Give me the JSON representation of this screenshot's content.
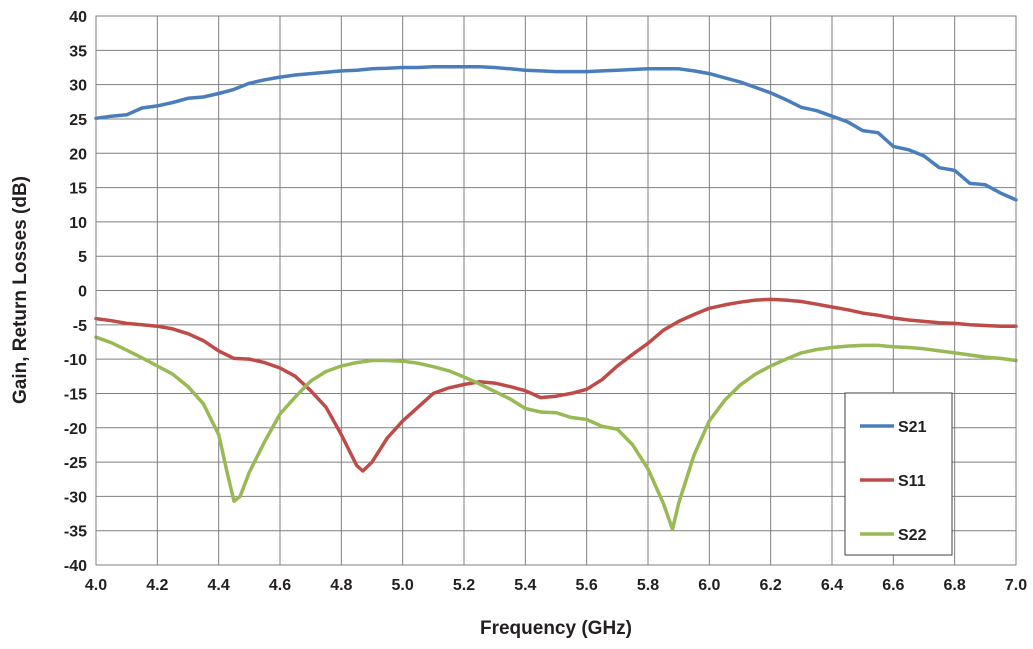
{
  "chart_data": {
    "type": "line",
    "title": "",
    "xlabel": "Frequency (GHz)",
    "ylabel": "Gain, Return Losses (dB)",
    "xlim": [
      4.0,
      7.0
    ],
    "ylim": [
      -40,
      40
    ],
    "x_ticks": [
      "4.0",
      "4.2",
      "4.4",
      "4.6",
      "4.8",
      "5.0",
      "5.2",
      "5.4",
      "5.6",
      "5.8",
      "6.0",
      "6.2",
      "6.4",
      "6.6",
      "6.8",
      "7.0"
    ],
    "y_ticks": [
      "40",
      "35",
      "30",
      "25",
      "20",
      "15",
      "10",
      "5",
      "0",
      "-5",
      "-10",
      "-15",
      "-20",
      "-25",
      "-30",
      "-35",
      "-40"
    ],
    "grid": true,
    "legend_position": "bottom-right",
    "series": [
      {
        "name": "S21",
        "color": "#4a7ebb",
        "points": [
          [
            4.0,
            25.1
          ],
          [
            4.05,
            25.4
          ],
          [
            4.1,
            25.6
          ],
          [
            4.15,
            26.6
          ],
          [
            4.2,
            26.9
          ],
          [
            4.25,
            27.4
          ],
          [
            4.3,
            28.0
          ],
          [
            4.35,
            28.2
          ],
          [
            4.4,
            28.7
          ],
          [
            4.45,
            29.3
          ],
          [
            4.5,
            30.2
          ],
          [
            4.55,
            30.7
          ],
          [
            4.6,
            31.1
          ],
          [
            4.65,
            31.4
          ],
          [
            4.7,
            31.6
          ],
          [
            4.75,
            31.8
          ],
          [
            4.8,
            32.0
          ],
          [
            4.85,
            32.1
          ],
          [
            4.9,
            32.3
          ],
          [
            4.95,
            32.4
          ],
          [
            5.0,
            32.5
          ],
          [
            5.05,
            32.5
          ],
          [
            5.1,
            32.6
          ],
          [
            5.15,
            32.6
          ],
          [
            5.2,
            32.6
          ],
          [
            5.25,
            32.6
          ],
          [
            5.3,
            32.5
          ],
          [
            5.35,
            32.3
          ],
          [
            5.4,
            32.1
          ],
          [
            5.45,
            32.0
          ],
          [
            5.5,
            31.9
          ],
          [
            5.55,
            31.9
          ],
          [
            5.6,
            31.9
          ],
          [
            5.65,
            32.0
          ],
          [
            5.7,
            32.1
          ],
          [
            5.75,
            32.2
          ],
          [
            5.8,
            32.3
          ],
          [
            5.85,
            32.3
          ],
          [
            5.9,
            32.3
          ],
          [
            5.95,
            32.0
          ],
          [
            6.0,
            31.6
          ],
          [
            6.05,
            31.0
          ],
          [
            6.1,
            30.4
          ],
          [
            6.15,
            29.6
          ],
          [
            6.2,
            28.8
          ],
          [
            6.25,
            27.8
          ],
          [
            6.3,
            26.7
          ],
          [
            6.35,
            26.2
          ],
          [
            6.4,
            25.4
          ],
          [
            6.45,
            24.6
          ],
          [
            6.5,
            23.3
          ],
          [
            6.55,
            23.0
          ],
          [
            6.6,
            21.0
          ],
          [
            6.65,
            20.5
          ],
          [
            6.7,
            19.6
          ],
          [
            6.75,
            17.9
          ],
          [
            6.8,
            17.5
          ],
          [
            6.85,
            15.6
          ],
          [
            6.9,
            15.4
          ],
          [
            6.95,
            14.2
          ],
          [
            7.0,
            13.2
          ]
        ]
      },
      {
        "name": "S11",
        "color": "#be4b48",
        "points": [
          [
            4.0,
            -4.1
          ],
          [
            4.05,
            -4.4
          ],
          [
            4.1,
            -4.8
          ],
          [
            4.15,
            -5.0
          ],
          [
            4.2,
            -5.2
          ],
          [
            4.25,
            -5.6
          ],
          [
            4.3,
            -6.3
          ],
          [
            4.35,
            -7.3
          ],
          [
            4.4,
            -8.8
          ],
          [
            4.45,
            -9.9
          ],
          [
            4.5,
            -10.0
          ],
          [
            4.55,
            -10.5
          ],
          [
            4.6,
            -11.3
          ],
          [
            4.65,
            -12.5
          ],
          [
            4.7,
            -14.6
          ],
          [
            4.75,
            -17.0
          ],
          [
            4.8,
            -21.0
          ],
          [
            4.85,
            -25.5
          ],
          [
            4.87,
            -26.3
          ],
          [
            4.9,
            -25.0
          ],
          [
            4.95,
            -21.5
          ],
          [
            5.0,
            -19.0
          ],
          [
            5.05,
            -17.0
          ],
          [
            5.1,
            -15.0
          ],
          [
            5.15,
            -14.2
          ],
          [
            5.2,
            -13.7
          ],
          [
            5.25,
            -13.3
          ],
          [
            5.3,
            -13.5
          ],
          [
            5.35,
            -14.0
          ],
          [
            5.4,
            -14.6
          ],
          [
            5.45,
            -15.6
          ],
          [
            5.5,
            -15.4
          ],
          [
            5.55,
            -15.0
          ],
          [
            5.6,
            -14.4
          ],
          [
            5.65,
            -13.0
          ],
          [
            5.7,
            -11.0
          ],
          [
            5.75,
            -9.3
          ],
          [
            5.8,
            -7.7
          ],
          [
            5.85,
            -5.8
          ],
          [
            5.9,
            -4.5
          ],
          [
            5.95,
            -3.5
          ],
          [
            6.0,
            -2.6
          ],
          [
            6.05,
            -2.1
          ],
          [
            6.1,
            -1.7
          ],
          [
            6.15,
            -1.4
          ],
          [
            6.2,
            -1.3
          ],
          [
            6.25,
            -1.4
          ],
          [
            6.3,
            -1.6
          ],
          [
            6.35,
            -2.0
          ],
          [
            6.4,
            -2.4
          ],
          [
            6.45,
            -2.8
          ],
          [
            6.5,
            -3.3
          ],
          [
            6.55,
            -3.6
          ],
          [
            6.6,
            -4.0
          ],
          [
            6.65,
            -4.3
          ],
          [
            6.7,
            -4.5
          ],
          [
            6.75,
            -4.7
          ],
          [
            6.8,
            -4.8
          ],
          [
            6.85,
            -5.0
          ],
          [
            6.9,
            -5.1
          ],
          [
            6.95,
            -5.2
          ],
          [
            7.0,
            -5.2
          ]
        ]
      },
      {
        "name": "S22",
        "color": "#98b954",
        "points": [
          [
            4.0,
            -6.8
          ],
          [
            4.05,
            -7.6
          ],
          [
            4.1,
            -8.7
          ],
          [
            4.15,
            -9.8
          ],
          [
            4.2,
            -11.0
          ],
          [
            4.25,
            -12.2
          ],
          [
            4.3,
            -14.0
          ],
          [
            4.35,
            -16.5
          ],
          [
            4.4,
            -21.0
          ],
          [
            4.43,
            -27.0
          ],
          [
            4.45,
            -30.7
          ],
          [
            4.47,
            -30.0
          ],
          [
            4.5,
            -26.5
          ],
          [
            4.55,
            -22.0
          ],
          [
            4.6,
            -18.0
          ],
          [
            4.65,
            -15.5
          ],
          [
            4.7,
            -13.2
          ],
          [
            4.75,
            -11.8
          ],
          [
            4.8,
            -11.0
          ],
          [
            4.85,
            -10.5
          ],
          [
            4.9,
            -10.2
          ],
          [
            4.95,
            -10.2
          ],
          [
            5.0,
            -10.3
          ],
          [
            5.05,
            -10.6
          ],
          [
            5.1,
            -11.1
          ],
          [
            5.15,
            -11.7
          ],
          [
            5.2,
            -12.6
          ],
          [
            5.25,
            -13.6
          ],
          [
            5.3,
            -14.7
          ],
          [
            5.35,
            -15.8
          ],
          [
            5.4,
            -17.2
          ],
          [
            5.45,
            -17.7
          ],
          [
            5.5,
            -17.8
          ],
          [
            5.55,
            -18.5
          ],
          [
            5.6,
            -18.8
          ],
          [
            5.65,
            -19.8
          ],
          [
            5.7,
            -20.2
          ],
          [
            5.75,
            -22.5
          ],
          [
            5.8,
            -26.0
          ],
          [
            5.85,
            -31.0
          ],
          [
            5.88,
            -34.8
          ],
          [
            5.9,
            -31.0
          ],
          [
            5.95,
            -24.0
          ],
          [
            6.0,
            -19.0
          ],
          [
            6.05,
            -16.0
          ],
          [
            6.1,
            -13.8
          ],
          [
            6.15,
            -12.2
          ],
          [
            6.2,
            -11.0
          ],
          [
            6.25,
            -10.0
          ],
          [
            6.3,
            -9.1
          ],
          [
            6.35,
            -8.6
          ],
          [
            6.4,
            -8.3
          ],
          [
            6.45,
            -8.1
          ],
          [
            6.5,
            -8.0
          ],
          [
            6.55,
            -8.0
          ],
          [
            6.6,
            -8.2
          ],
          [
            6.65,
            -8.3
          ],
          [
            6.7,
            -8.5
          ],
          [
            6.75,
            -8.8
          ],
          [
            6.8,
            -9.1
          ],
          [
            6.85,
            -9.4
          ],
          [
            6.9,
            -9.7
          ],
          [
            6.95,
            -9.9
          ],
          [
            7.0,
            -10.2
          ]
        ]
      }
    ]
  }
}
